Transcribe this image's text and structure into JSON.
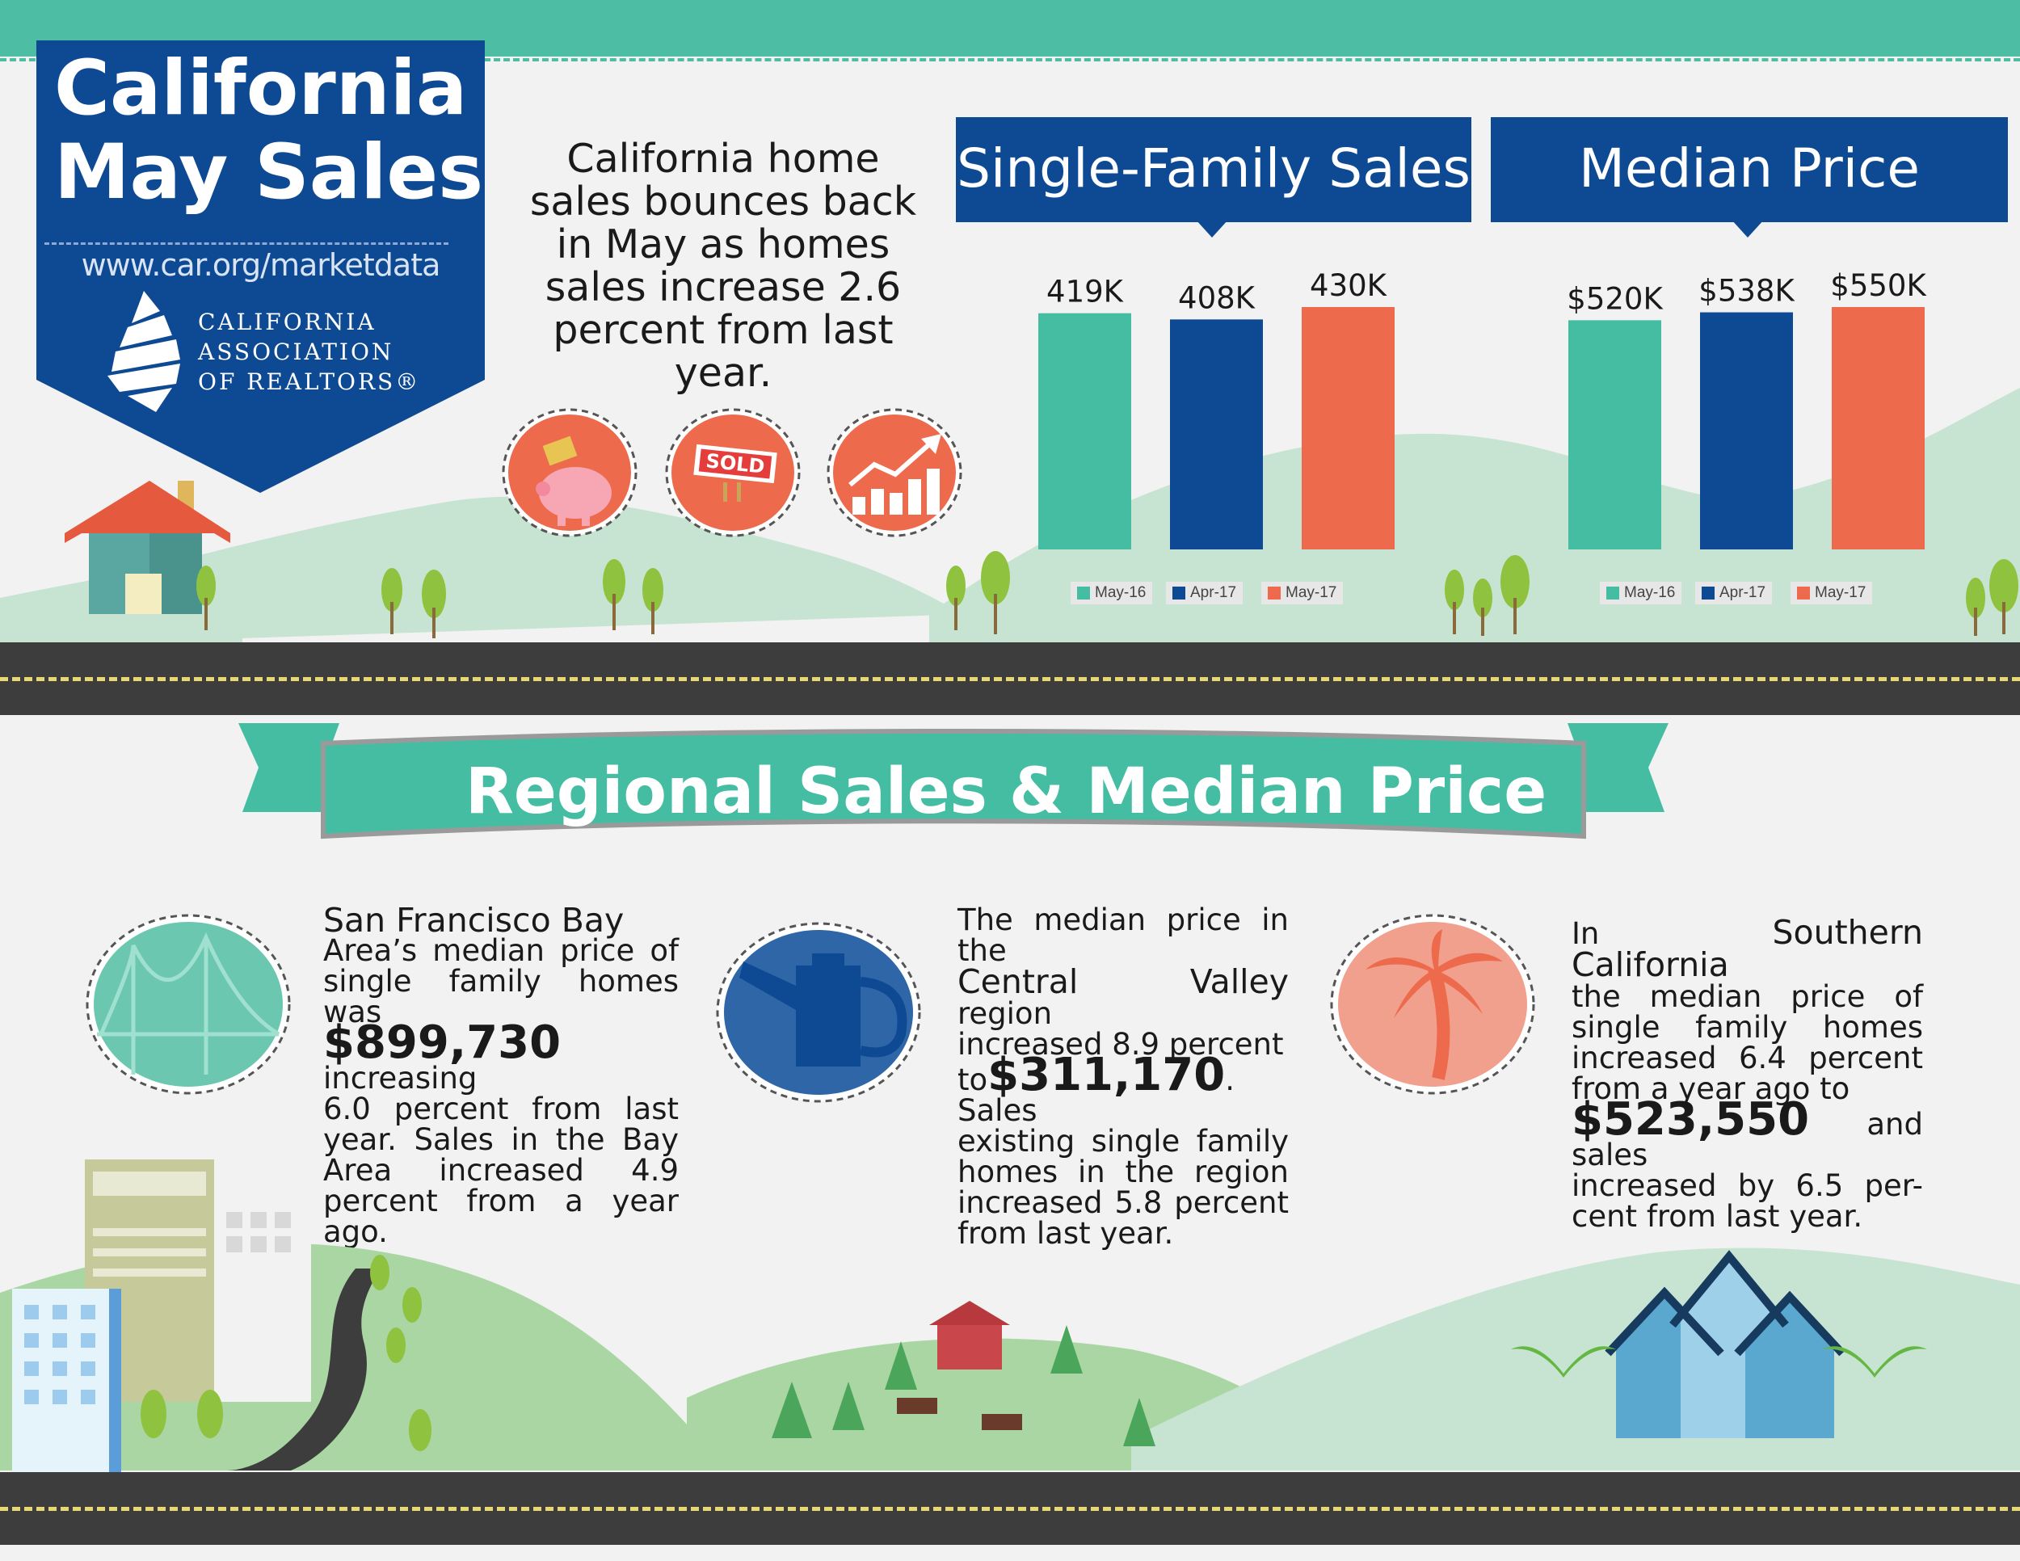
{
  "badge": {
    "title_line1": "California",
    "title_line2": "May Sales",
    "url": "www.car.org/marketdata",
    "org_line1": "CALIFORNIA",
    "org_line2": "ASSOCIATION",
    "org_line3": "OF REALTORS®"
  },
  "intro": {
    "text": "California home sales bounces back in May as homes sales increase 2.6 percent from last year."
  },
  "icons": [
    "piggy-bank-icon",
    "sold-sign-icon",
    "growth-chart-icon"
  ],
  "sold_label": "SOLD",
  "ribbon": {
    "title": "Regional Sales & Median Price"
  },
  "regions": {
    "sf": {
      "title": "San Francisco Bay",
      "text1": "Area’s median price of single family homes was",
      "price": "$899,730",
      "text2": " increasing",
      "text3": "6.0 percent from last year. Sales in the Bay Area increased 4.9 percent from a year ago."
    },
    "cv": {
      "text1": "The median price in the",
      "name": "Central Valley",
      "text2": " region",
      "text3": "increased 8.9 percent",
      "to": "to",
      "price": "$311,170",
      "text4": ". Sales",
      "text5": "existing single family homes in the region increased 5.8 percent from last year."
    },
    "sc": {
      "pre": "In ",
      "name": "Southern California",
      "text1": "the median price of single family homes increased 6.4 percent from a year ago to",
      "price": "$523,550",
      "text2": " and sales",
      "text3": "increased by 6.5 per-cent from last year."
    }
  },
  "colors": {
    "teal": "#45bda3",
    "navy": "#0e4a93",
    "coral": "#ee6a4c",
    "hill": "#c6e3d1"
  },
  "chart_data": [
    {
      "type": "bar",
      "title": "Single-Family Sales",
      "categories": [
        "May-16",
        "Apr-17",
        "May-17"
      ],
      "values": [
        419,
        408,
        430
      ],
      "value_labels": [
        "419K",
        "408K",
        "430K"
      ],
      "legend": [
        "May-16",
        "Apr-17",
        "May-17"
      ],
      "legend_position": "bottom",
      "colors": [
        "#45bda3",
        "#0e4a93",
        "#ee6a4c"
      ],
      "ylim": [
        0,
        430
      ]
    },
    {
      "type": "bar",
      "title": "Median Price",
      "categories": [
        "May-16",
        "Apr-17",
        "May-17"
      ],
      "values": [
        520,
        538,
        550
      ],
      "value_labels": [
        "$520K",
        "$538K",
        "$550K"
      ],
      "legend": [
        "May-16",
        "Apr-17",
        "May-17"
      ],
      "legend_position": "bottom",
      "colors": [
        "#45bda3",
        "#0e4a93",
        "#ee6a4c"
      ],
      "ylim": [
        0,
        550
      ]
    }
  ]
}
